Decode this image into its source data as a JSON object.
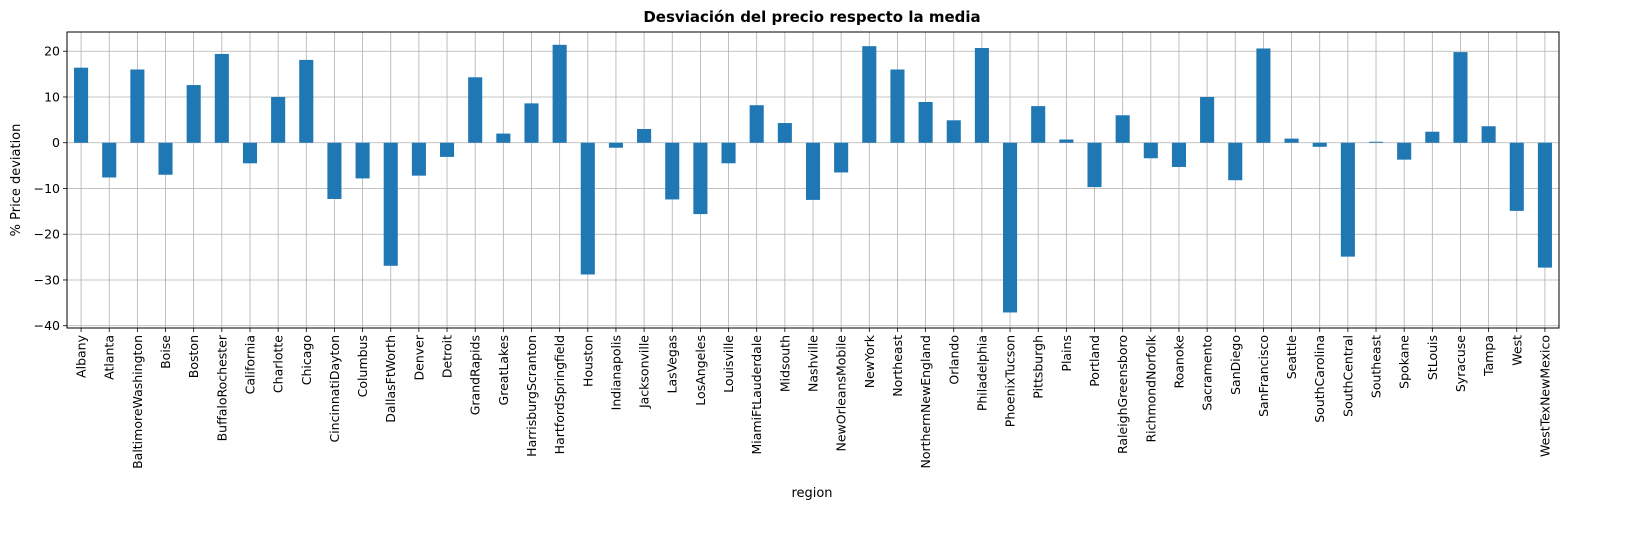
{
  "chart_data": {
    "type": "bar",
    "title": "Desviación del precio respecto la media",
    "xlabel": "region",
    "ylabel": "% Price deviation",
    "ylim": [
      -40.5,
      24.2
    ],
    "yticks": [
      20,
      10,
      0,
      -10,
      -20,
      -30,
      -40
    ],
    "ytick_labels": [
      "20",
      "10",
      "0",
      "−10",
      "−20",
      "−30",
      "−40"
    ],
    "grid": true,
    "bar_color": "#1f77b4",
    "categories": [
      "Albany",
      "Atlanta",
      "BaltimoreWashington",
      "Boise",
      "Boston",
      "BuffaloRochester",
      "California",
      "Charlotte",
      "Chicago",
      "CincinnatiDayton",
      "Columbus",
      "DallasFtWorth",
      "Denver",
      "Detroit",
      "GrandRapids",
      "GreatLakes",
      "HarrisburgScranton",
      "HartfordSpringfield",
      "Houston",
      "Indianapolis",
      "Jacksonville",
      "LasVegas",
      "LosAngeles",
      "Louisville",
      "MiamiFtLauderdale",
      "Midsouth",
      "Nashville",
      "NewOrleansMobile",
      "NewYork",
      "Northeast",
      "NorthernNewEngland",
      "Orlando",
      "Philadelphia",
      "PhoenixTucson",
      "Pittsburgh",
      "Plains",
      "Portland",
      "RaleighGreensboro",
      "RichmondNorfolk",
      "Roanoke",
      "Sacramento",
      "SanDiego",
      "SanFrancisco",
      "Seattle",
      "SouthCarolina",
      "SouthCentral",
      "Southeast",
      "Spokane",
      "StLouis",
      "Syracuse",
      "Tampa",
      "West",
      "WestTexNewMexico"
    ],
    "values": [
      16.4,
      -7.6,
      16.0,
      -7.0,
      12.6,
      19.4,
      -4.5,
      10.0,
      18.1,
      -12.3,
      -7.8,
      -26.9,
      -7.2,
      -3.1,
      14.3,
      2.0,
      8.6,
      21.4,
      -28.8,
      -1.1,
      3.0,
      -12.4,
      -15.6,
      -4.5,
      8.2,
      4.3,
      -12.5,
      -6.5,
      21.1,
      16.0,
      8.9,
      4.9,
      20.7,
      -37.1,
      8.0,
      0.7,
      -9.7,
      6.0,
      -3.4,
      -5.3,
      10.0,
      -8.2,
      20.6,
      0.9,
      -0.9,
      -24.9,
      0.2,
      -3.7,
      2.4,
      19.8,
      3.6,
      -14.9,
      -27.3
    ]
  }
}
